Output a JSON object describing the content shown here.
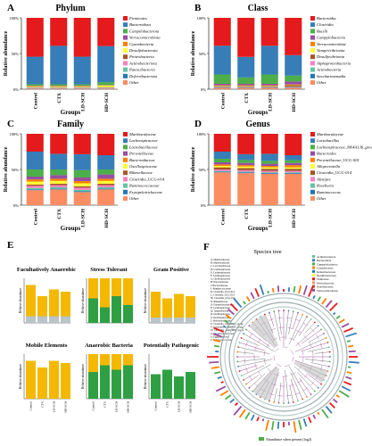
{
  "groups": [
    "Control",
    "CTX",
    "LD-SCH",
    "HD-SCH"
  ],
  "x_label": "Groups",
  "y_label": "Relative abundance",
  "panels": [
    {
      "letter": "A",
      "title": "Phylum",
      "chart_data": {
        "type": "bar",
        "stacked": true,
        "categories": [
          "Control",
          "CTX",
          "LD-SCH",
          "HD-SCH"
        ],
        "ylim": [
          0,
          1
        ],
        "series": [
          {
            "name": "Firmicutes",
            "color": "#e41a1c",
            "values": [
              0.55,
              0.4,
              0.55,
              0.4
            ]
          },
          {
            "name": "Bacteroidota",
            "color": "#377eb8",
            "values": [
              0.39,
              0.55,
              0.39,
              0.51
            ]
          },
          {
            "name": "Campilobacterota",
            "color": "#4daf4a",
            "values": [
              0.02,
              0.02,
              0.02,
              0.04
            ]
          },
          {
            "name": "Verrucomicrobiota",
            "color": "#984ea3",
            "values": [
              0.005,
              0.005,
              0.005,
              0.005
            ]
          },
          {
            "name": "Cyanobacteria",
            "color": "#ff7f00",
            "values": [
              0.005,
              0.005,
              0.005,
              0.005
            ]
          },
          {
            "name": "Desulfobacterota",
            "color": "#ffff33",
            "values": [
              0.01,
              0.01,
              0.01,
              0.02
            ]
          },
          {
            "name": "Proteobacteria",
            "color": "#a65628",
            "values": [
              0.005,
              0.005,
              0.005,
              0.005
            ]
          },
          {
            "name": "Actinobacteriota",
            "color": "#f781bf",
            "values": [
              0.005,
              0.005,
              0.005,
              0.005
            ]
          },
          {
            "name": "Patescibacteria",
            "color": "#66c2a5",
            "values": [
              0.005,
              0.005,
              0.005,
              0.005
            ]
          },
          {
            "name": "Deferribacterota",
            "color": "#1f78b4",
            "values": [
              0.005,
              0.005,
              0.005,
              0.005
            ]
          },
          {
            "name": "Other",
            "color": "#fc8d62",
            "values": [
              0.01,
              0.01,
              0.01,
              0.01
            ]
          }
        ]
      }
    },
    {
      "letter": "B",
      "title": "Class",
      "chart_data": {
        "type": "bar",
        "stacked": true,
        "categories": [
          "Control",
          "CTX",
          "LD-SCH",
          "HD-SCH"
        ],
        "ylim": [
          0,
          1
        ],
        "series": [
          {
            "name": "Bacteroidia",
            "color": "#e41a1c",
            "values": [
              0.39,
              0.55,
              0.39,
              0.51
            ]
          },
          {
            "name": "Clostridia",
            "color": "#377eb8",
            "values": [
              0.4,
              0.29,
              0.4,
              0.28
            ]
          },
          {
            "name": "Bacilli",
            "color": "#4daf4a",
            "values": [
              0.13,
              0.09,
              0.13,
              0.08
            ]
          },
          {
            "name": "Campylobacteria",
            "color": "#984ea3",
            "values": [
              0.02,
              0.02,
              0.02,
              0.04
            ]
          },
          {
            "name": "Verrucomicrobiae",
            "color": "#ff7f00",
            "values": [
              0.005,
              0.005,
              0.005,
              0.005
            ]
          },
          {
            "name": "Vampirivibrionia",
            "color": "#ffff33",
            "values": [
              0.005,
              0.005,
              0.005,
              0.005
            ]
          },
          {
            "name": "Desulfovibrionia",
            "color": "#a65628",
            "values": [
              0.01,
              0.01,
              0.01,
              0.02
            ]
          },
          {
            "name": "Alphaproteobacteria",
            "color": "#f781bf",
            "values": [
              0.005,
              0.005,
              0.005,
              0.005
            ]
          },
          {
            "name": "Actinobacteria",
            "color": "#66c2a5",
            "values": [
              0.005,
              0.005,
              0.005,
              0.005
            ]
          },
          {
            "name": "Saccharimonadia",
            "color": "#1f78b4",
            "values": [
              0.005,
              0.005,
              0.005,
              0.005
            ]
          },
          {
            "name": "Other",
            "color": "#fc8d62",
            "values": [
              0.02,
              0.02,
              0.02,
              0.02
            ]
          }
        ]
      }
    },
    {
      "letter": "C",
      "title": "Family",
      "chart_data": {
        "type": "bar",
        "stacked": true,
        "categories": [
          "Control",
          "CTX",
          "LD-SCH",
          "HD-SCH"
        ],
        "ylim": [
          0,
          1
        ],
        "series": [
          {
            "name": "Muribaculaceae",
            "color": "#e41a1c",
            "values": [
              0.25,
              0.28,
              0.28,
              0.3
            ]
          },
          {
            "name": "Lachnospiraceae",
            "color": "#377eb8",
            "values": [
              0.25,
              0.22,
              0.22,
              0.2
            ]
          },
          {
            "name": "Lactobacillaceae",
            "color": "#4daf4a",
            "values": [
              0.1,
              0.08,
              0.1,
              0.07
            ]
          },
          {
            "name": "Prevotellaceae",
            "color": "#984ea3",
            "values": [
              0.04,
              0.05,
              0.05,
              0.06
            ]
          },
          {
            "name": "Bacteroidaceae",
            "color": "#ff7f00",
            "values": [
              0.03,
              0.03,
              0.03,
              0.03
            ]
          },
          {
            "name": "Oscillospiraceae",
            "color": "#ffff33",
            "values": [
              0.04,
              0.04,
              0.04,
              0.04
            ]
          },
          {
            "name": "Rikenellaceae",
            "color": "#a65628",
            "values": [
              0.02,
              0.02,
              0.02,
              0.02
            ]
          },
          {
            "name": "Clostridia_UCG-014",
            "color": "#f781bf",
            "values": [
              0.03,
              0.03,
              0.03,
              0.03
            ]
          },
          {
            "name": "Ruminococcaceae",
            "color": "#66c2a5",
            "values": [
              0.02,
              0.02,
              0.02,
              0.02
            ]
          },
          {
            "name": "Erysipelotrichaceae",
            "color": "#1f78b4",
            "values": [
              0.01,
              0.01,
              0.01,
              0.01
            ]
          },
          {
            "name": "Other",
            "color": "#fc8d62",
            "values": [
              0.21,
              0.22,
              0.18,
              0.22
            ]
          }
        ]
      }
    },
    {
      "letter": "D",
      "title": "Genus",
      "chart_data": {
        "type": "bar",
        "stacked": true,
        "categories": [
          "Control",
          "CTX",
          "LD-SCH",
          "HD-SCH"
        ],
        "ylim": [
          0,
          1
        ],
        "series": [
          {
            "name": "Muribaculaceae",
            "color": "#e41a1c",
            "values": [
              0.25,
              0.28,
              0.28,
              0.3
            ]
          },
          {
            "name": "Lactobacillus",
            "color": "#377eb8",
            "values": [
              0.1,
              0.08,
              0.1,
              0.07
            ]
          },
          {
            "name": "Lachnospiraceae_NK4A136_group",
            "color": "#4daf4a",
            "values": [
              0.05,
              0.04,
              0.04,
              0.04
            ]
          },
          {
            "name": "Bacteroides",
            "color": "#984ea3",
            "values": [
              0.03,
              0.03,
              0.03,
              0.03
            ]
          },
          {
            "name": "Prevotellaceae_UCG-001",
            "color": "#ff7f00",
            "values": [
              0.02,
              0.02,
              0.02,
              0.03
            ]
          },
          {
            "name": "Alloprevotella",
            "color": "#ffff33",
            "values": [
              0.02,
              0.02,
              0.02,
              0.02
            ]
          },
          {
            "name": "Clostridia_UCG-014",
            "color": "#a65628",
            "values": [
              0.03,
              0.03,
              0.03,
              0.03
            ]
          },
          {
            "name": "Alistipes",
            "color": "#f781bf",
            "values": [
              0.02,
              0.02,
              0.02,
              0.02
            ]
          },
          {
            "name": "Roseburia",
            "color": "#66c2a5",
            "values": [
              0.01,
              0.01,
              0.01,
              0.01
            ]
          },
          {
            "name": "Ruminococcus",
            "color": "#1f78b4",
            "values": [
              0.01,
              0.01,
              0.01,
              0.01
            ]
          },
          {
            "name": "Other",
            "color": "#fc8d62",
            "values": [
              0.46,
              0.44,
              0.44,
              0.44
            ]
          }
        ]
      }
    }
  ],
  "panel_e": {
    "letter": "E",
    "y_label": "Relative abundance",
    "groups": [
      "Control",
      "CTX",
      "LD-SCH",
      "HD-SCH"
    ],
    "charts": [
      {
        "title": "Facultatively Anaerobic",
        "color": "#f5b800",
        "values": [
          0.85,
          0.6,
          0.75,
          0.7
        ],
        "base": [
          0.15,
          0.15,
          0.15,
          0.15
        ]
      },
      {
        "title": "Stress Tolerant",
        "color": "#2ea043",
        "values": [
          0.55,
          0.35,
          0.6,
          0.4
        ],
        "base": [
          0.0,
          0.0,
          0.0,
          0.0
        ],
        "top_color": "#f5b800"
      },
      {
        "title": "Gram Positive",
        "color": "#f5b800",
        "values": [
          0.7,
          0.55,
          0.65,
          0.6
        ],
        "base": [
          0.12,
          0.12,
          0.12,
          0.12
        ]
      },
      {
        "title": "Mobile Elements",
        "color": "#f5b800",
        "values": [
          0.85,
          0.7,
          0.85,
          0.8
        ],
        "base": [
          0.0,
          0.0,
          0.0,
          0.0
        ]
      },
      {
        "title": "Anaerobic Bacteria",
        "color": "#2ea043",
        "values": [
          0.6,
          0.75,
          0.65,
          0.75
        ],
        "base": [
          0.0,
          0.0,
          0.0,
          0.0
        ],
        "top_color": "#f5b800"
      },
      {
        "title": "Potentially Pathogenic",
        "color": "#2ea043",
        "values": [
          0.55,
          0.65,
          0.5,
          0.6
        ],
        "base": [
          0.0,
          0.0,
          0.0,
          0.0
        ]
      }
    ]
  },
  "panel_f": {
    "letter": "F",
    "title": "Species tree",
    "footer": "Abundance when present (log2)",
    "left_legend": [
      "A: Muribaculaceae",
      "B: Muribaculaceae",
      "C: Lactobacillaceae",
      "D: Lachnospiraceae",
      "E: Lachnospiraceae",
      "F: Lachnospiraceae",
      "G: Oscillospiraceae",
      "H: Prevotellaceae",
      "I: Bacteroidaceae",
      "J: Ruminococcaceae",
      "K: Clostridia_UCG-014",
      "L: Clostridia_UCG-014",
      "M: Clostridia_UCG-014",
      "N: Rikenellaceae",
      "O: Erysipelotrichaceae",
      "P: Lachnospiraceae",
      "Q: Tannerellaceae",
      "R: Oscillospiraceae",
      "S: Oscillospiraceae",
      "T: Helicobacteraceae",
      "U: Clostridia_vadinBB60_group",
      "V: Clostridia_vadinBB60_group",
      "W: Clostridia_vadinBB60_group",
      "X: Desulfovibrionaceae",
      "Y: Eggerthellaceae",
      "Z: Butyricicoccaceae"
    ],
    "right_legend": [
      {
        "name": "Actinobacteriota",
        "color": "#66c2a5"
      },
      {
        "name": "Bacteroidota",
        "color": "#377eb8"
      },
      {
        "name": "Campylobacterota",
        "color": "#4daf4a"
      },
      {
        "name": "Cyanobacteria",
        "color": "#ff7f00"
      },
      {
        "name": "Deferribacterota",
        "color": "#1f78b4"
      },
      {
        "name": "Desulfobacterota",
        "color": "#ffff33"
      },
      {
        "name": "Firmicutes",
        "color": "#e41a1c"
      },
      {
        "name": "Patescibacteria",
        "color": "#fc8d62"
      },
      {
        "name": "Proteobacteria",
        "color": "#a65628"
      },
      {
        "name": "Verrucomicrobiota",
        "color": "#984ea3"
      }
    ]
  }
}
